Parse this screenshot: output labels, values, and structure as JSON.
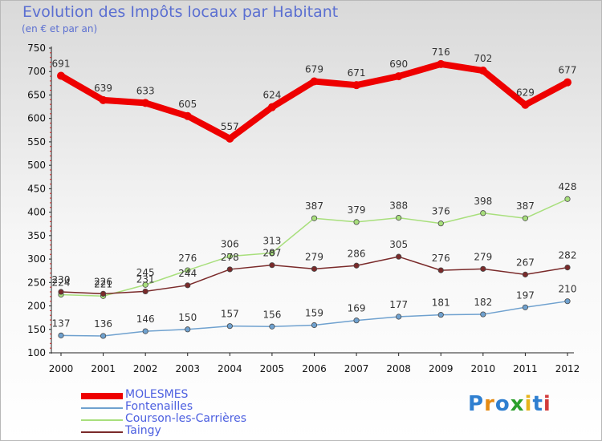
{
  "title": "Evolution des Impôts locaux par Habitant",
  "subtitle": "(en € et par an)",
  "logo": {
    "text": "Proxiti",
    "colors": [
      "#2f7fd0",
      "#e58a12",
      "#2f7fd0",
      "#2ca02c",
      "#e7b41c",
      "#2f7fd0",
      "#d23c3c"
    ]
  },
  "chart_data": {
    "type": "line",
    "x": [
      2000,
      2001,
      2002,
      2003,
      2004,
      2005,
      2006,
      2007,
      2008,
      2009,
      2010,
      2011,
      2012
    ],
    "ylim": [
      100,
      750
    ],
    "yticks": [
      100,
      150,
      200,
      250,
      300,
      350,
      400,
      450,
      500,
      550,
      600,
      650,
      700,
      750
    ],
    "grid": false,
    "legend_position": "bottom-left",
    "series": [
      {
        "name": "MOLESMES",
        "color": "#ee0000",
        "thick": true,
        "values": [
          691,
          639,
          633,
          605,
          557,
          624,
          679,
          671,
          690,
          716,
          702,
          629,
          677
        ]
      },
      {
        "name": "Fontenailles",
        "color": "#6fa1cf",
        "values": [
          137,
          136,
          146,
          150,
          157,
          156,
          159,
          169,
          177,
          181,
          182,
          197,
          210
        ]
      },
      {
        "name": "Courson-les-Carrières",
        "color": "#a8df7c",
        "values": [
          224,
          221,
          245,
          276,
          306,
          313,
          387,
          379,
          388,
          376,
          398,
          387,
          428
        ]
      },
      {
        "name": "Taingy",
        "color": "#7a2a2a",
        "values": [
          230,
          226,
          231,
          244,
          278,
          287,
          279,
          286,
          305,
          276,
          279,
          267,
          282
        ]
      }
    ]
  }
}
